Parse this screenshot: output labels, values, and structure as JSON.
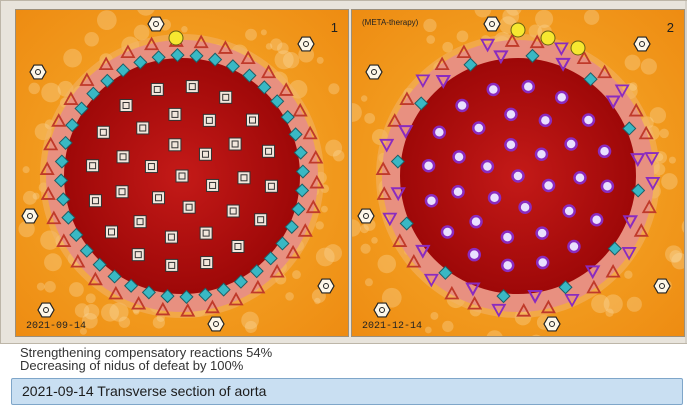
{
  "panels": [
    {
      "number": "1",
      "date": "2021-09-14",
      "tag": "",
      "pattern": "squares"
    },
    {
      "number": "2",
      "date": "2021-12-14",
      "tag": "(META-therapy)",
      "pattern": "violet"
    }
  ],
  "status": {
    "line1": "Strengthening compensatory reactions 54%",
    "line2": "Decreasing of nidus of defeat by 100%"
  },
  "caption": "2021-09-14 Transverse section of aorta",
  "colors": {
    "background_orange": "#f2a020",
    "lesion_red": "#b80c0c",
    "ring_pink": "#e89080",
    "marker_violet": "#8a2bbf",
    "marker_cyan": "#39b8c4",
    "marker_yellow": "#f6e830",
    "caption_bg": "#c9dff2"
  }
}
